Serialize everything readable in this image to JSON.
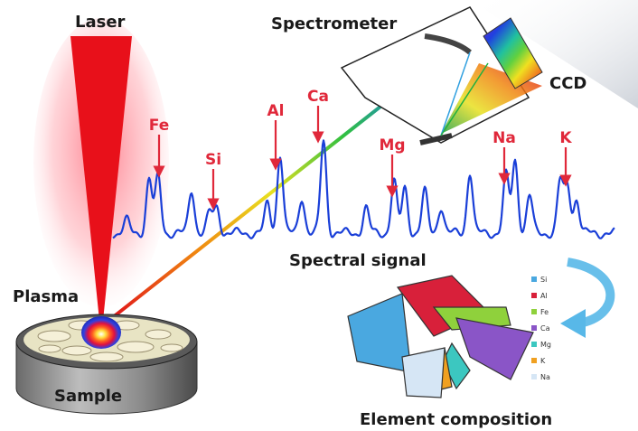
{
  "labels": {
    "laser": "Laser",
    "spectrometer": "Spectrometer",
    "ccd": "CCD",
    "plasma": "Plasma",
    "sample": "Sample",
    "spectral_signal": "Spectral signal",
    "element_composition": "Element composition"
  },
  "peak_labels": [
    "Fe",
    "Si",
    "Al",
    "Ca",
    "Mg",
    "Na",
    "K"
  ],
  "legend": [
    {
      "name": "Si",
      "color": "#4aa8e0"
    },
    {
      "name": "Al",
      "color": "#d8203a"
    },
    {
      "name": "Fe",
      "color": "#8fd13c"
    },
    {
      "name": "Ca",
      "color": "#8a55c7"
    },
    {
      "name": "Mg",
      "color": "#3cc7c0"
    },
    {
      "name": "K",
      "color": "#f0a020"
    },
    {
      "name": "Na",
      "color": "#d6e6f5"
    }
  ],
  "colors": {
    "laser": "#e8101a",
    "spectrum": "#1a3fd8",
    "arrow": "#e0283a",
    "curved_arrow": "#58b8e8"
  }
}
